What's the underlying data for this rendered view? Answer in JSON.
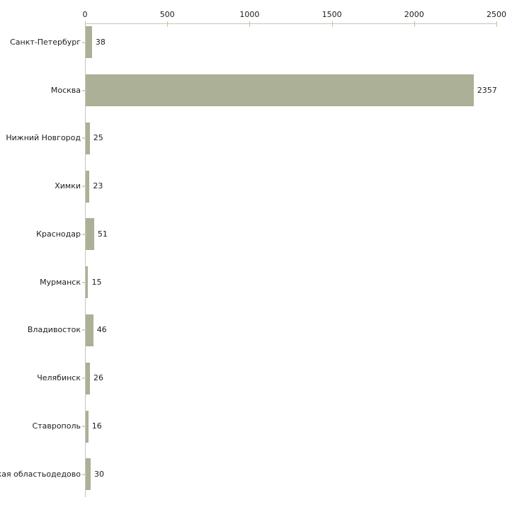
{
  "chart_data": {
    "type": "bar",
    "orientation": "horizontal",
    "title": "",
    "xlabel": "",
    "ylabel": "",
    "xlim": [
      0,
      2500
    ],
    "x_ticks": [
      0,
      500,
      1000,
      1500,
      2000,
      2500
    ],
    "x_axis_position": "top",
    "grid": false,
    "legend": null,
    "categories": [
      "Санкт-Петербург",
      "Москва",
      "Нижний Новгород",
      "Химки",
      "Краснодар",
      "Мурманск",
      "Владивосток",
      "Челябинск",
      "Ставрополь",
      "ская областьодедово"
    ],
    "values": [
      38,
      2357,
      25,
      23,
      51,
      15,
      46,
      26,
      16,
      30
    ],
    "value_labels": [
      "38",
      "2357",
      "25",
      "23",
      "51",
      "15",
      "46",
      "26",
      "16",
      "30"
    ],
    "colors": {
      "bar_fill": "#abb096",
      "x_tick_mark": "#c5c293",
      "y_tick_mark": "#d4d2b4",
      "axis_line": "#c6c4bd",
      "text": "#1c1c1c",
      "background": "#ffffff"
    }
  }
}
